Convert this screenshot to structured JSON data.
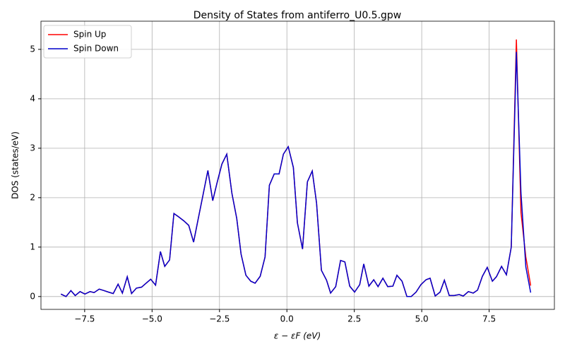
{
  "chart_data": {
    "type": "line",
    "title": "Density of States from antiferro_U0.5.gpw",
    "xlabel": "ε − εF (eV)",
    "ylabel": "DOS (states/eV)",
    "x": [
      -8.38,
      -8.19,
      -8.01,
      -7.85,
      -7.67,
      -7.49,
      -7.3,
      -7.15,
      -6.96,
      -6.78,
      -6.62,
      -6.44,
      -6.26,
      -6.1,
      -5.92,
      -5.76,
      -5.58,
      -5.39,
      -5.24,
      -5.05,
      -4.87,
      -4.69,
      -4.53,
      -4.35,
      -4.19,
      -4.01,
      -3.82,
      -3.64,
      -3.46,
      -3.3,
      -3.12,
      -2.93,
      -2.75,
      -2.59,
      -2.41,
      -2.23,
      -2.04,
      -1.86,
      -1.7,
      -1.52,
      -1.34,
      -1.18,
      -0.99,
      -0.81,
      -0.65,
      -0.47,
      -0.29,
      -0.13,
      0.05,
      0.24,
      0.39,
      0.58,
      0.76,
      0.94,
      1.1,
      1.28,
      1.47,
      1.62,
      1.81,
      1.99,
      2.15,
      2.33,
      2.51,
      2.7,
      2.85,
      3.04,
      3.22,
      3.38,
      3.56,
      3.74,
      3.93,
      4.08,
      4.27,
      4.45,
      4.61,
      4.79,
      4.97,
      5.16,
      5.31,
      5.5,
      5.68,
      5.84,
      6.02,
      6.2,
      6.39,
      6.54,
      6.73,
      6.91,
      7.07,
      7.25,
      7.43,
      7.62,
      7.77,
      7.96,
      8.14,
      8.32,
      8.51,
      8.68,
      8.86,
      9.04
    ],
    "series": [
      {
        "name": "Spin Up",
        "color": "#ff0000",
        "values": [
          0.05,
          0,
          0.12,
          0.02,
          0.1,
          0.05,
          0.1,
          0.08,
          0.15,
          0.12,
          0.09,
          0.06,
          0.25,
          0.07,
          0.4,
          0.06,
          0.17,
          0.19,
          0.26,
          0.35,
          0.23,
          0.91,
          0.61,
          0.74,
          1.68,
          1.61,
          1.53,
          1.44,
          1.1,
          1.54,
          2.03,
          2.55,
          1.94,
          2.3,
          2.68,
          2.88,
          2.09,
          1.58,
          0.86,
          0.43,
          0.31,
          0.27,
          0.41,
          0.8,
          2.25,
          2.48,
          2.48,
          2.88,
          3.03,
          2.61,
          1.49,
          0.96,
          2.32,
          2.54,
          1.89,
          0.53,
          0.33,
          0.07,
          0.2,
          0.73,
          0.7,
          0.21,
          0.09,
          0.24,
          0.66,
          0.21,
          0.34,
          0.2,
          0.37,
          0.2,
          0.21,
          0.43,
          0.31,
          0,
          0,
          0.09,
          0.24,
          0.34,
          0.37,
          0.01,
          0.09,
          0.33,
          0.02,
          0.02,
          0.04,
          0.01,
          0.1,
          0.07,
          0.13,
          0.41,
          0.59,
          0.31,
          0.4,
          0.61,
          0.44,
          1.0,
          5.2,
          1.7,
          0.8,
          0.22
        ]
      },
      {
        "name": "Spin Down",
        "color": "#0000cc",
        "values": [
          0.05,
          0,
          0.12,
          0.02,
          0.1,
          0.05,
          0.1,
          0.08,
          0.15,
          0.12,
          0.09,
          0.06,
          0.25,
          0.07,
          0.4,
          0.06,
          0.17,
          0.19,
          0.26,
          0.35,
          0.23,
          0.91,
          0.61,
          0.74,
          1.68,
          1.61,
          1.53,
          1.44,
          1.1,
          1.54,
          2.03,
          2.55,
          1.94,
          2.3,
          2.68,
          2.88,
          2.09,
          1.58,
          0.86,
          0.43,
          0.31,
          0.27,
          0.41,
          0.8,
          2.25,
          2.48,
          2.48,
          2.88,
          3.03,
          2.61,
          1.49,
          0.96,
          2.32,
          2.54,
          1.89,
          0.53,
          0.33,
          0.07,
          0.2,
          0.73,
          0.7,
          0.21,
          0.09,
          0.24,
          0.66,
          0.21,
          0.34,
          0.2,
          0.37,
          0.2,
          0.21,
          0.43,
          0.31,
          0,
          0,
          0.09,
          0.24,
          0.34,
          0.37,
          0.01,
          0.09,
          0.33,
          0.02,
          0.02,
          0.04,
          0.01,
          0.1,
          0.07,
          0.13,
          0.41,
          0.59,
          0.31,
          0.4,
          0.61,
          0.44,
          1.0,
          4.95,
          2.1,
          0.6,
          0.08
        ]
      }
    ],
    "xlim": [
      -9.12,
      9.92
    ],
    "ylim": [
      -0.26,
      5.57
    ],
    "xticks": [
      {
        "value": -7.5,
        "label": "−7.5"
      },
      {
        "value": -5,
        "label": "−5.0"
      },
      {
        "value": -2.5,
        "label": "−2.5"
      },
      {
        "value": 0,
        "label": "0.0"
      },
      {
        "value": 2.5,
        "label": "2.5"
      },
      {
        "value": 5,
        "label": "5.0"
      },
      {
        "value": 7.5,
        "label": "7.5"
      }
    ],
    "yticks": [
      0,
      1,
      2,
      3,
      4,
      5
    ],
    "grid": true,
    "legend": "upper left"
  }
}
